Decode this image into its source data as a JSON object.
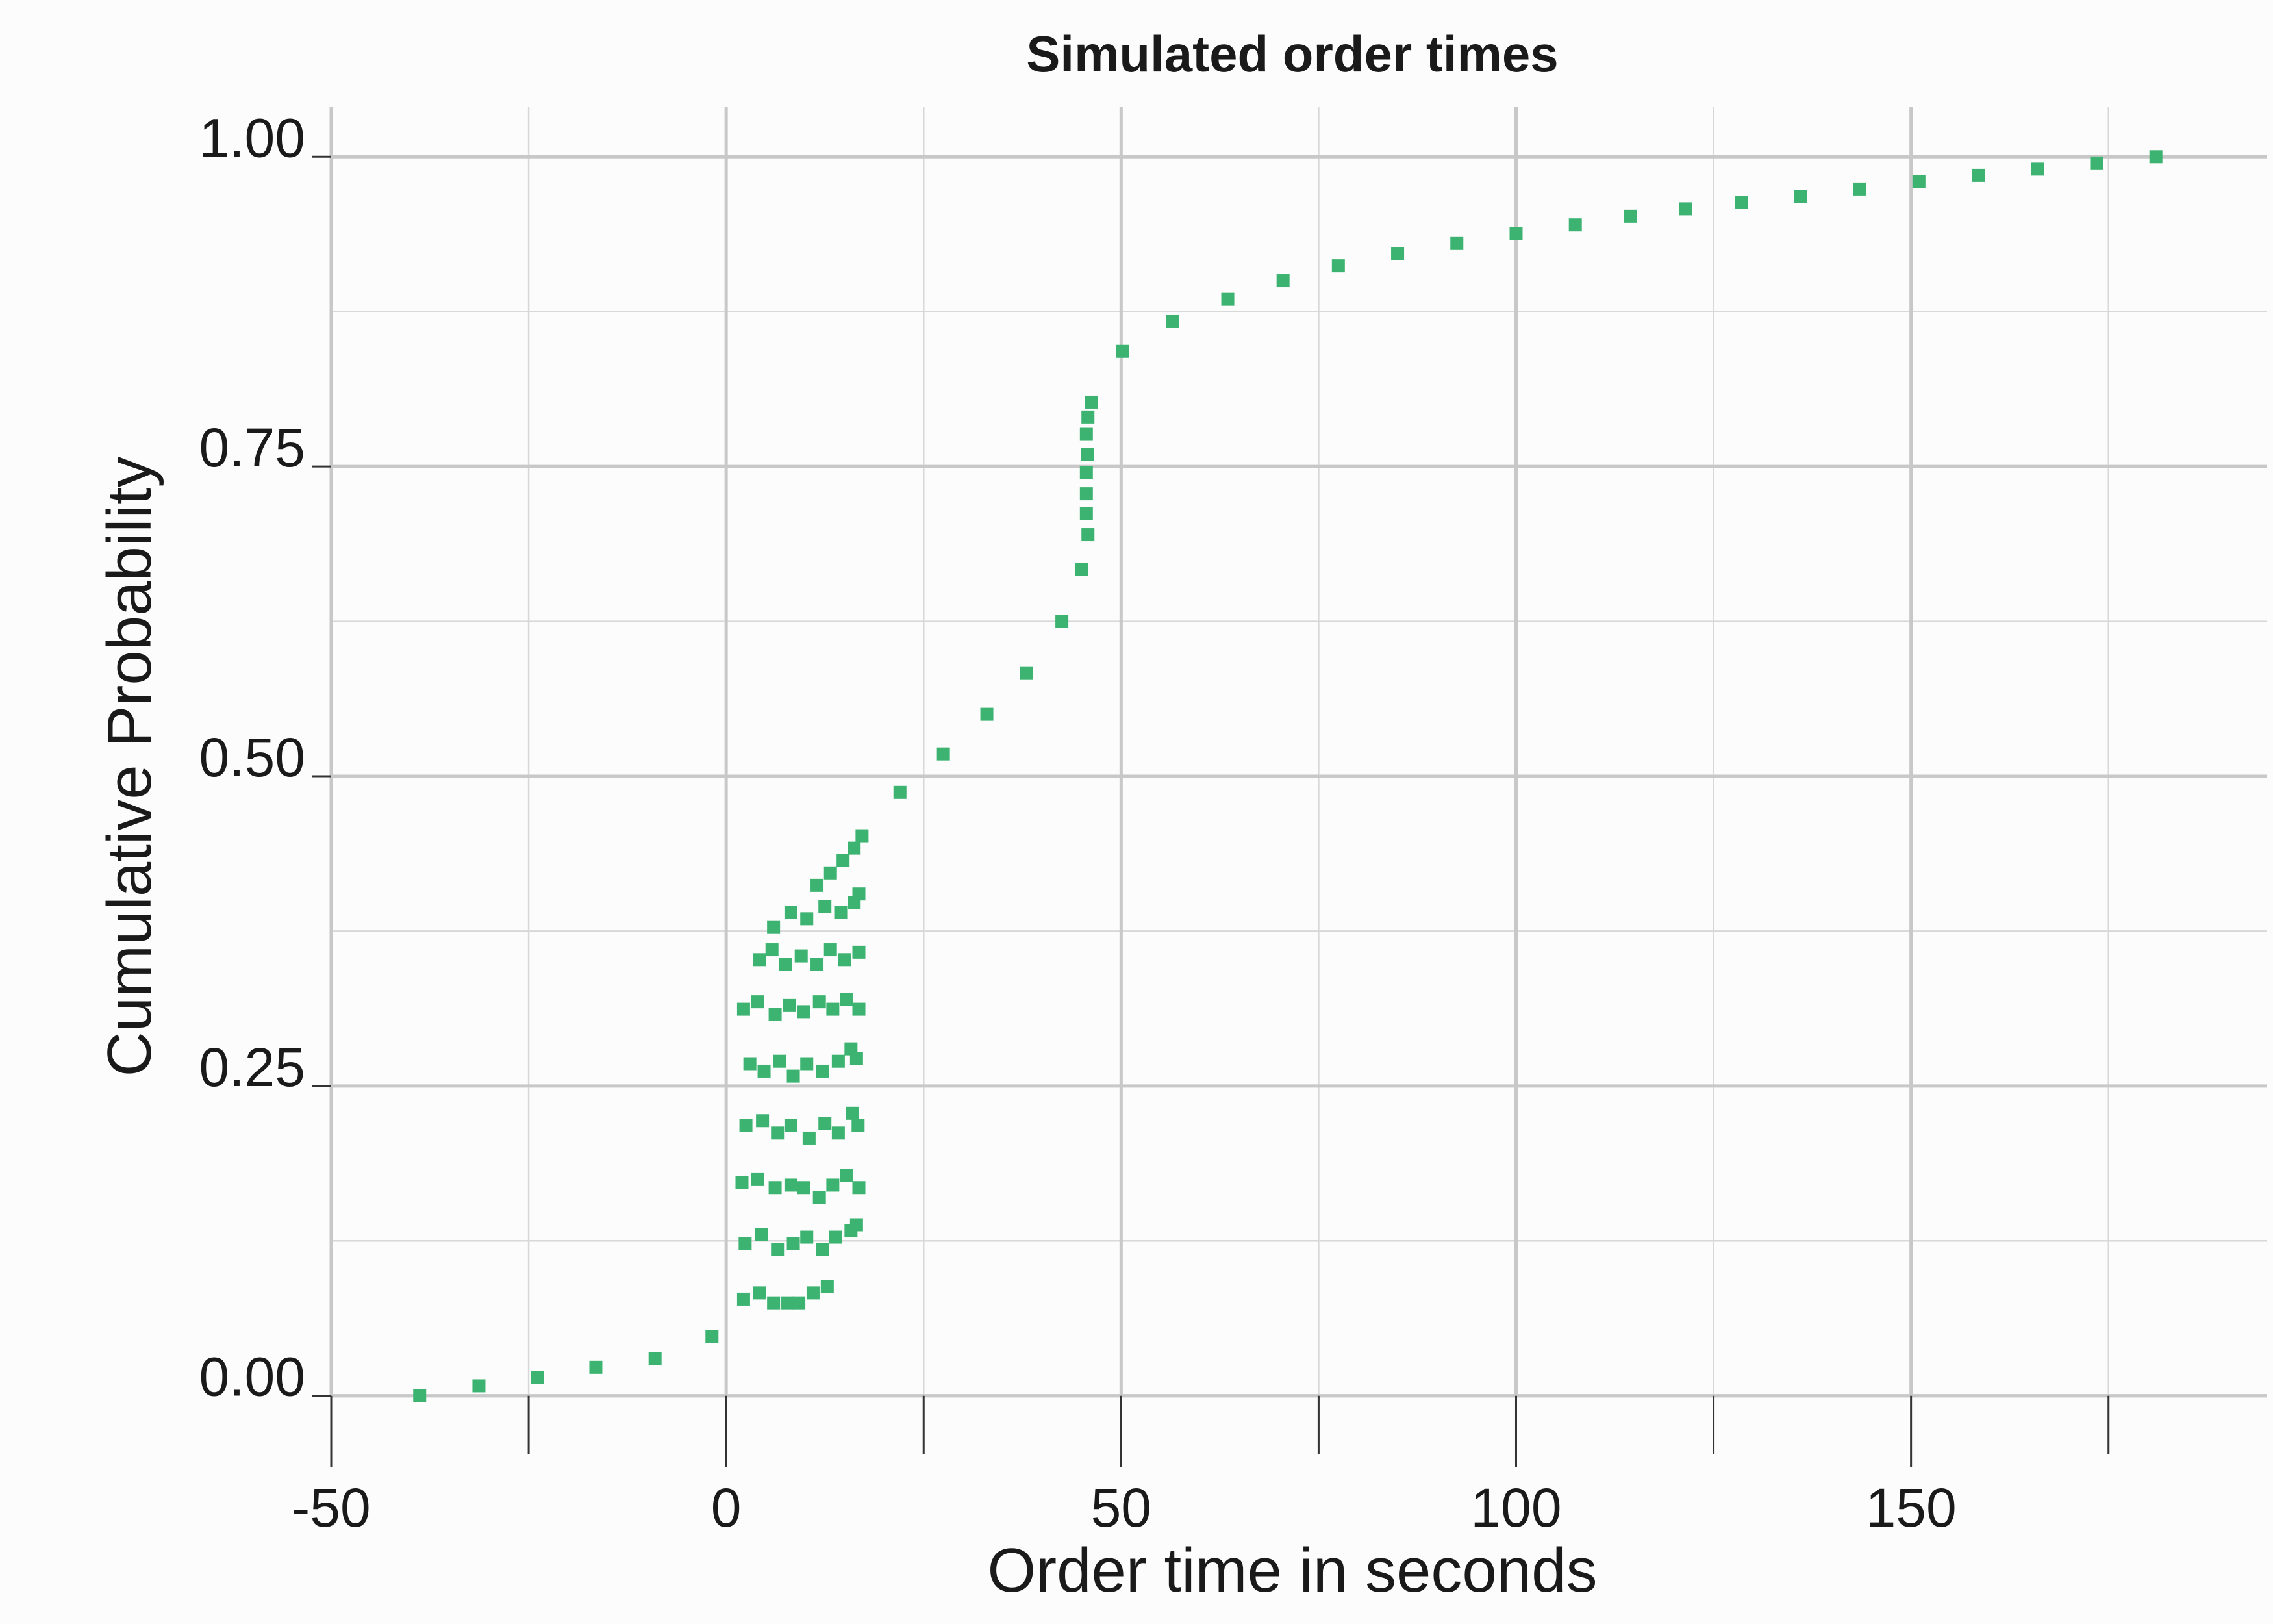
{
  "chart_data": {
    "type": "scatter",
    "title": "Simulated order times",
    "xlabel": "Order time in seconds",
    "ylabel": "Cumulative Probability",
    "xlim": [
      -50,
      195
    ],
    "ylim": [
      -0.04,
      1.04
    ],
    "x_ticks": [
      -50,
      0,
      50,
      100,
      150
    ],
    "x_tick_labels": [
      "-50",
      "0",
      "50",
      "100",
      "150"
    ],
    "y_ticks": [
      0,
      0.25,
      0.5,
      0.75,
      1
    ],
    "y_tick_labels": [
      "0.00",
      "0.25",
      "0.50",
      "0.75",
      "1.00"
    ],
    "grid": true,
    "legend": "none",
    "point_color": "#3cb371",
    "points": [
      [
        -38.8,
        0.0
      ],
      [
        -31.3,
        0.008
      ],
      [
        -23.9,
        0.015
      ],
      [
        -16.5,
        0.023
      ],
      [
        -9.0,
        0.03
      ],
      [
        -1.8,
        0.048
      ],
      [
        2.2,
        0.078
      ],
      [
        4.2,
        0.083
      ],
      [
        6.0,
        0.075
      ],
      [
        7.8,
        0.075
      ],
      [
        9.2,
        0.075
      ],
      [
        11.0,
        0.083
      ],
      [
        12.8,
        0.088
      ],
      [
        2.4,
        0.123
      ],
      [
        4.5,
        0.13
      ],
      [
        6.5,
        0.118
      ],
      [
        8.5,
        0.123
      ],
      [
        10.2,
        0.128
      ],
      [
        12.2,
        0.118
      ],
      [
        13.8,
        0.128
      ],
      [
        15.8,
        0.133
      ],
      [
        16.5,
        0.138
      ],
      [
        2.0,
        0.172
      ],
      [
        4.0,
        0.175
      ],
      [
        6.2,
        0.168
      ],
      [
        8.2,
        0.17
      ],
      [
        9.8,
        0.168
      ],
      [
        11.8,
        0.16
      ],
      [
        13.5,
        0.17
      ],
      [
        15.2,
        0.178
      ],
      [
        16.8,
        0.168
      ],
      [
        2.5,
        0.218
      ],
      [
        4.6,
        0.222
      ],
      [
        6.5,
        0.212
      ],
      [
        8.2,
        0.218
      ],
      [
        10.5,
        0.208
      ],
      [
        12.5,
        0.22
      ],
      [
        14.2,
        0.212
      ],
      [
        16.0,
        0.228
      ],
      [
        16.7,
        0.218
      ],
      [
        3.0,
        0.268
      ],
      [
        4.8,
        0.262
      ],
      [
        6.8,
        0.27
      ],
      [
        8.5,
        0.258
      ],
      [
        10.2,
        0.268
      ],
      [
        12.2,
        0.262
      ],
      [
        14.2,
        0.27
      ],
      [
        15.8,
        0.28
      ],
      [
        16.5,
        0.272
      ],
      [
        2.2,
        0.312
      ],
      [
        4.0,
        0.318
      ],
      [
        6.2,
        0.308
      ],
      [
        8.0,
        0.315
      ],
      [
        9.8,
        0.31
      ],
      [
        11.8,
        0.318
      ],
      [
        13.5,
        0.312
      ],
      [
        15.2,
        0.32
      ],
      [
        16.8,
        0.312
      ],
      [
        4.2,
        0.352
      ],
      [
        5.8,
        0.36
      ],
      [
        7.5,
        0.348
      ],
      [
        9.5,
        0.355
      ],
      [
        11.5,
        0.348
      ],
      [
        13.2,
        0.36
      ],
      [
        15.0,
        0.352
      ],
      [
        16.8,
        0.358
      ],
      [
        6.0,
        0.378
      ],
      [
        8.2,
        0.39
      ],
      [
        10.2,
        0.385
      ],
      [
        12.5,
        0.395
      ],
      [
        14.5,
        0.39
      ],
      [
        16.2,
        0.398
      ],
      [
        16.8,
        0.405
      ],
      [
        11.5,
        0.412
      ],
      [
        13.2,
        0.422
      ],
      [
        14.8,
        0.432
      ],
      [
        16.2,
        0.442
      ],
      [
        17.2,
        0.452
      ],
      [
        22.0,
        0.487
      ],
      [
        27.5,
        0.518
      ],
      [
        33.0,
        0.55
      ],
      [
        38.0,
        0.583
      ],
      [
        42.5,
        0.625
      ],
      [
        45.0,
        0.667
      ],
      [
        45.8,
        0.695
      ],
      [
        45.6,
        0.712
      ],
      [
        45.6,
        0.728
      ],
      [
        45.6,
        0.745
      ],
      [
        45.7,
        0.76
      ],
      [
        45.6,
        0.776
      ],
      [
        45.8,
        0.79
      ],
      [
        46.2,
        0.802
      ],
      [
        50.2,
        0.843
      ],
      [
        56.5,
        0.867
      ],
      [
        63.5,
        0.885
      ],
      [
        70.5,
        0.9
      ],
      [
        77.5,
        0.912
      ],
      [
        85.0,
        0.922
      ],
      [
        92.5,
        0.93
      ],
      [
        100.0,
        0.938
      ],
      [
        107.5,
        0.945
      ],
      [
        114.5,
        0.952
      ],
      [
        121.5,
        0.958
      ],
      [
        128.5,
        0.963
      ],
      [
        136.0,
        0.968
      ],
      [
        143.5,
        0.974
      ],
      [
        151.0,
        0.98
      ],
      [
        158.5,
        0.985
      ],
      [
        166.0,
        0.99
      ],
      [
        173.5,
        0.995
      ],
      [
        181.0,
        1.0
      ]
    ]
  }
}
